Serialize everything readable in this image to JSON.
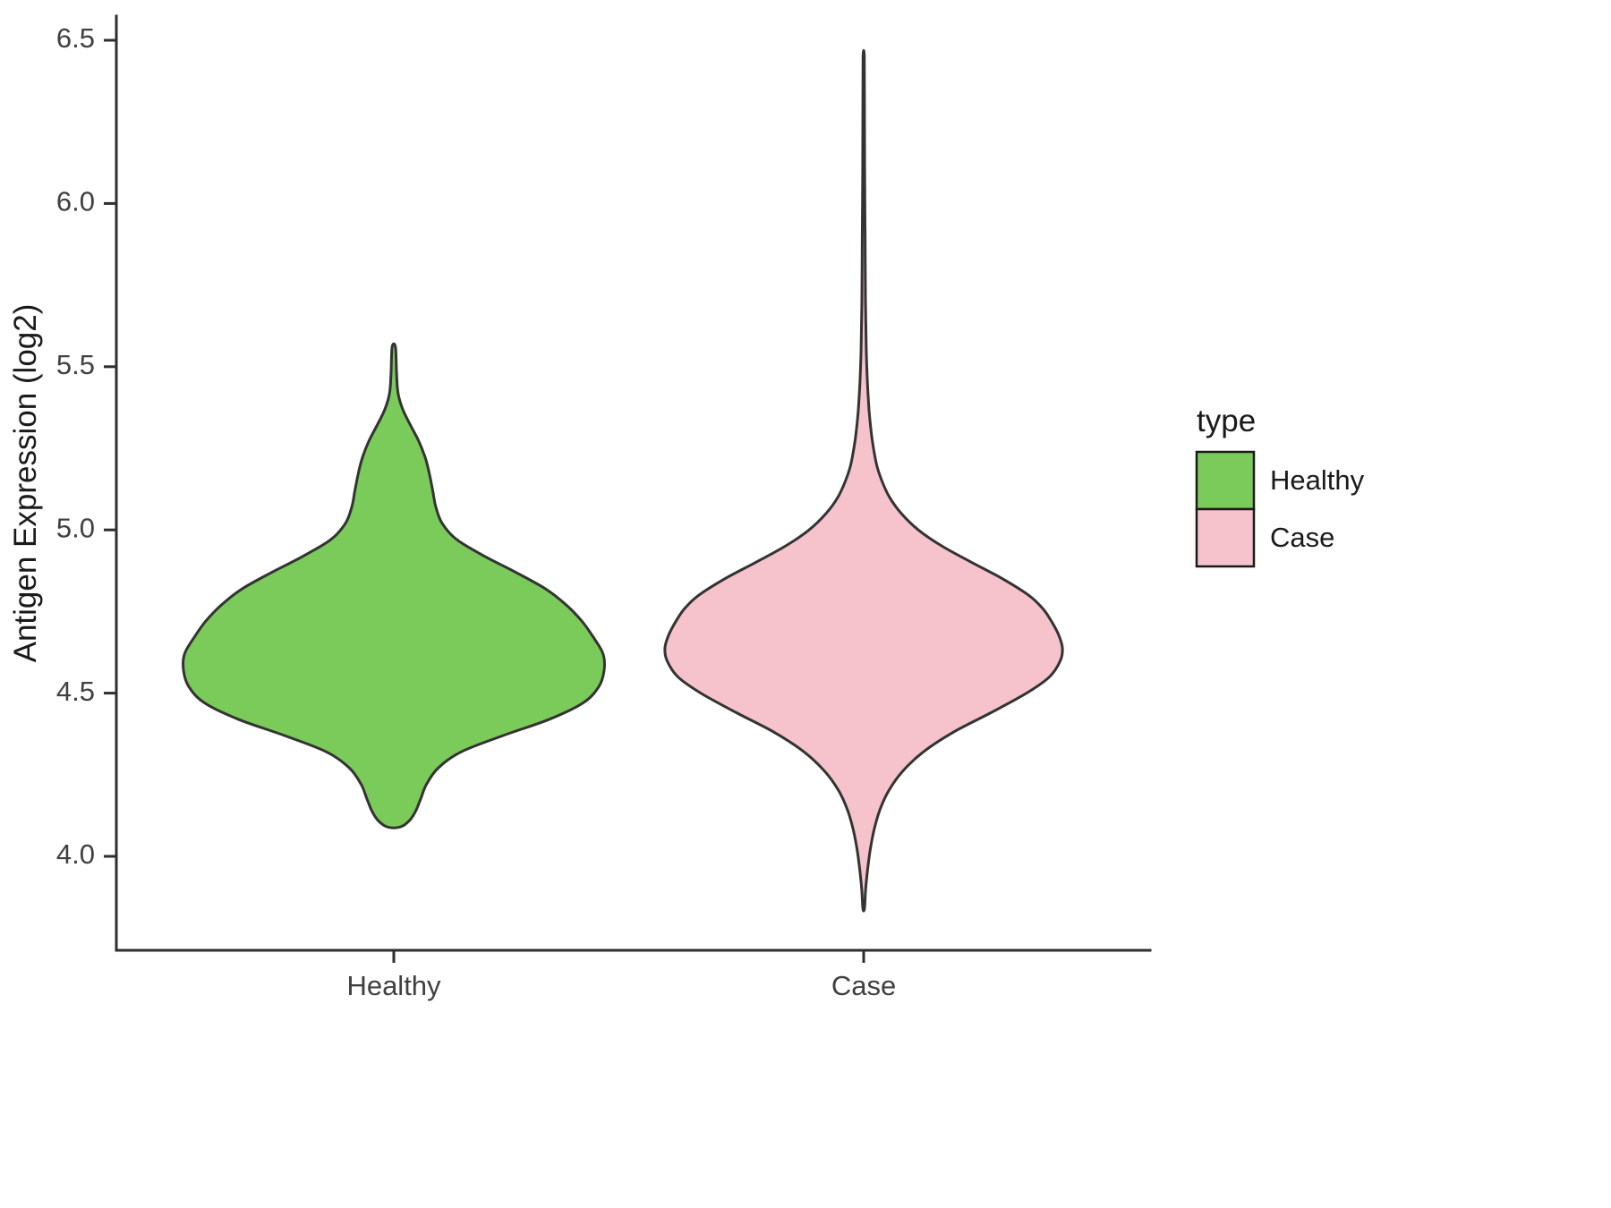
{
  "figure": {
    "background": "#ffffff"
  },
  "chart_data": {
    "type": "violin",
    "title": "",
    "xlabel": "",
    "ylabel": "Antigen Expression (log2)",
    "x_categories": [
      "Healthy",
      "Case"
    ],
    "y_tick_labels": [
      "6.5",
      "6.0",
      "5.5",
      "5.0",
      "4.5",
      "4.0"
    ],
    "y_tick_values": [
      6.5,
      6.0,
      5.5,
      5.0,
      4.5,
      4.0
    ],
    "ylim": [
      3.7,
      6.58
    ],
    "grid": false,
    "legend": {
      "title": "type",
      "position": "right",
      "entries": [
        {
          "label": "Healthy",
          "color": "#7BCB5B"
        },
        {
          "label": "Case",
          "color": "#F6C3CD"
        }
      ]
    },
    "series": [
      {
        "name": "Healthy",
        "fill": "#7BCB5B",
        "stroke": "#333333",
        "x": 1,
        "y_range": [
          4.09,
          5.56
        ],
        "peak_value": 4.58,
        "profile": [
          [
            4.09,
            0.03
          ],
          [
            4.11,
            0.075
          ],
          [
            4.14,
            0.105
          ],
          [
            4.18,
            0.13
          ],
          [
            4.22,
            0.155
          ],
          [
            4.27,
            0.21
          ],
          [
            4.32,
            0.32
          ],
          [
            4.37,
            0.52
          ],
          [
            4.42,
            0.74
          ],
          [
            4.47,
            0.9
          ],
          [
            4.52,
            0.975
          ],
          [
            4.57,
            1.0
          ],
          [
            4.62,
            0.995
          ],
          [
            4.67,
            0.95
          ],
          [
            4.72,
            0.895
          ],
          [
            4.77,
            0.82
          ],
          [
            4.82,
            0.72
          ],
          [
            4.87,
            0.58
          ],
          [
            4.92,
            0.43
          ],
          [
            4.97,
            0.3
          ],
          [
            5.02,
            0.23
          ],
          [
            5.07,
            0.2
          ],
          [
            5.12,
            0.185
          ],
          [
            5.17,
            0.17
          ],
          [
            5.22,
            0.15
          ],
          [
            5.27,
            0.12
          ],
          [
            5.32,
            0.08
          ],
          [
            5.37,
            0.042
          ],
          [
            5.42,
            0.02
          ],
          [
            5.48,
            0.013
          ],
          [
            5.56,
            0.008
          ]
        ]
      },
      {
        "name": "Case",
        "fill": "#F6C3CD",
        "stroke": "#333333",
        "x": 2,
        "y_range": [
          3.84,
          6.45
        ],
        "peak_value": 4.63,
        "profile": [
          [
            3.84,
            0.004
          ],
          [
            3.9,
            0.01
          ],
          [
            3.96,
            0.02
          ],
          [
            4.02,
            0.033
          ],
          [
            4.08,
            0.052
          ],
          [
            4.14,
            0.08
          ],
          [
            4.2,
            0.125
          ],
          [
            4.26,
            0.195
          ],
          [
            4.32,
            0.3
          ],
          [
            4.38,
            0.45
          ],
          [
            4.44,
            0.64
          ],
          [
            4.5,
            0.82
          ],
          [
            4.55,
            0.935
          ],
          [
            4.6,
            0.99
          ],
          [
            4.64,
            1.0
          ],
          [
            4.68,
            0.98
          ],
          [
            4.72,
            0.945
          ],
          [
            4.76,
            0.9
          ],
          [
            4.8,
            0.83
          ],
          [
            4.85,
            0.7
          ],
          [
            4.9,
            0.545
          ],
          [
            4.95,
            0.395
          ],
          [
            5.0,
            0.275
          ],
          [
            5.05,
            0.19
          ],
          [
            5.1,
            0.13
          ],
          [
            5.15,
            0.092
          ],
          [
            5.2,
            0.065
          ],
          [
            5.28,
            0.042
          ],
          [
            5.36,
            0.028
          ],
          [
            5.45,
            0.019
          ],
          [
            5.55,
            0.013
          ],
          [
            5.7,
            0.009
          ],
          [
            5.9,
            0.007
          ],
          [
            6.1,
            0.005
          ],
          [
            6.3,
            0.004
          ],
          [
            6.45,
            0.003
          ]
        ]
      }
    ]
  }
}
